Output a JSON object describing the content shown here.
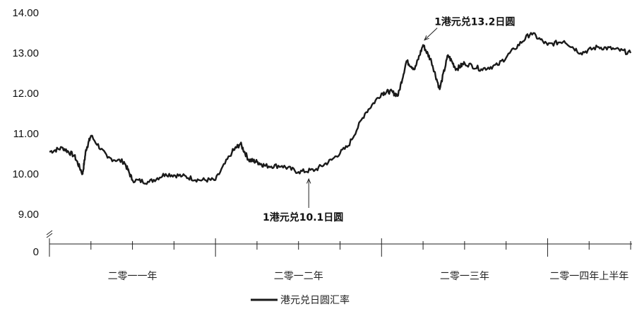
{
  "chart_data": {
    "type": "line",
    "title": "",
    "xlabel": "",
    "ylabel": "",
    "ylim": [
      9.0,
      14.0
    ],
    "y_axis_break": true,
    "y_ticks": [
      "14.00",
      "13.00",
      "12.00",
      "11.00",
      "10.00",
      "9.00",
      "0"
    ],
    "categories": [
      "二零一一年",
      "二零一二年",
      "二零一三年",
      "二零一四年上半年"
    ],
    "grid": false,
    "legend_position": "bottom-center",
    "series": [
      {
        "name": "港元兑日圆汇率",
        "color": "#1a1a1a",
        "x": [
          2011.0,
          2011.08,
          2011.15,
          2011.2,
          2011.22,
          2011.25,
          2011.35,
          2011.45,
          2011.5,
          2011.6,
          2011.7,
          2011.8,
          2011.9,
          2012.0,
          2012.1,
          2012.15,
          2012.2,
          2012.25,
          2012.3,
          2012.4,
          2012.5,
          2012.6,
          2012.7,
          2012.8,
          2012.9,
          2013.0,
          2013.05,
          2013.1,
          2013.15,
          2013.2,
          2013.25,
          2013.3,
          2013.35,
          2013.4,
          2013.45,
          2013.5,
          2013.6,
          2013.7,
          2013.8,
          2013.9,
          2014.0,
          2014.1,
          2014.2,
          2014.3,
          2014.4,
          2014.5
        ],
        "values": [
          10.55,
          10.65,
          10.45,
          10.0,
          10.6,
          10.95,
          10.4,
          10.3,
          9.85,
          9.8,
          10.0,
          9.95,
          9.85,
          9.85,
          10.55,
          10.75,
          10.35,
          10.3,
          10.2,
          10.2,
          10.05,
          10.1,
          10.35,
          10.7,
          11.5,
          12.0,
          12.05,
          11.95,
          12.8,
          12.6,
          13.2,
          12.8,
          12.1,
          12.95,
          12.6,
          12.75,
          12.6,
          12.7,
          13.1,
          13.5,
          13.2,
          13.3,
          13.0,
          13.15,
          13.1,
          13.0
        ]
      }
    ],
    "annotations": [
      {
        "text": "1港元兑13.2日圆",
        "x": 2013.25,
        "y": 13.2
      },
      {
        "text": "1港元兑10.1日圆",
        "x": 2012.57,
        "y": 10.0
      }
    ]
  }
}
